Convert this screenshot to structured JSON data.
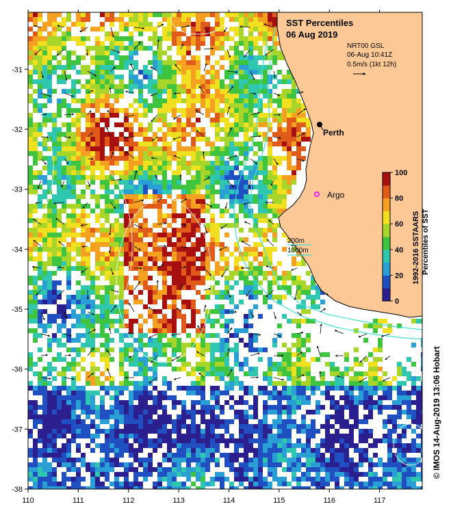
{
  "title": {
    "line1": "SST Percentiles",
    "line2": "06 Aug 2019"
  },
  "info": {
    "product": "NRT00 GSL",
    "time": "06-Aug 10:41Z",
    "vector_scale": "0.5m/s (1kt 12h)"
  },
  "places": [
    {
      "name": "Perth",
      "lon": 115.86,
      "lat": -31.95
    },
    {
      "name": "Argo",
      "lon": 115.8,
      "lat": -33.06
    }
  ],
  "isobaths": {
    "label_200": "200m",
    "label_1000": "1000m",
    "color": "#40e0d0"
  },
  "axes": {
    "x_ticks": [
      "110",
      "111",
      "112",
      "113",
      "114",
      "115",
      "116",
      "117"
    ],
    "y_ticks": [
      "-31",
      "-32",
      "-33",
      "-34",
      "-35",
      "-36",
      "-37",
      "-38"
    ],
    "lon_range": [
      110,
      117.85
    ],
    "lat_range": [
      -38,
      -30.05
    ]
  },
  "colorbar": {
    "label1": "1992-2016 SSTAARS",
    "label2": "Percentiles of SST",
    "ticks": [
      "0",
      "20",
      "40",
      "60",
      "80",
      "100"
    ],
    "colors": [
      "#2b1f8f",
      "#1f4fc0",
      "#2a9fd6",
      "#2fc7b0",
      "#3ec43e",
      "#a8d52a",
      "#f0e020",
      "#f5a020",
      "#e05a1a",
      "#a81010"
    ]
  },
  "land_color": "#fcc896",
  "credit": "© IMOS 14-Aug-2019 13:06 Hobart"
}
